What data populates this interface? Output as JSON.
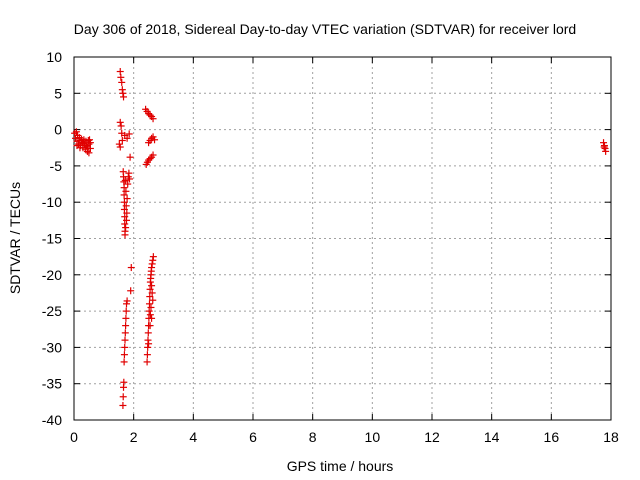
{
  "chart_data": {
    "type": "scatter",
    "title": "Day 306 of 2018, Sidereal Day-to-day VTEC variation (SDTVAR) for receiver lord",
    "xlabel": "GPS time / hours",
    "ylabel": "SDTVAR / TECUs",
    "xlim": [
      0,
      18
    ],
    "ylim": [
      -40,
      10
    ],
    "xticks": [
      0,
      2,
      4,
      6,
      8,
      10,
      12,
      14,
      16,
      18
    ],
    "yticks": [
      10,
      5,
      0,
      -5,
      -10,
      -15,
      -20,
      -25,
      -30,
      -35,
      -40
    ],
    "grid": true,
    "marker": "+",
    "color": "#e00000",
    "series": [
      {
        "name": "SDTVAR",
        "points": [
          [
            0.02,
            -0.5
          ],
          [
            0.05,
            -1.2
          ],
          [
            0.08,
            -0.3
          ],
          [
            0.1,
            -1.6
          ],
          [
            0.12,
            -0.8
          ],
          [
            0.15,
            -2.0
          ],
          [
            0.18,
            -1.1
          ],
          [
            0.2,
            -1.5
          ],
          [
            0.22,
            -2.2
          ],
          [
            0.25,
            -1.3
          ],
          [
            0.28,
            -1.8
          ],
          [
            0.3,
            -2.5
          ],
          [
            0.33,
            -1.4
          ],
          [
            0.35,
            -2.0
          ],
          [
            0.38,
            -2.7
          ],
          [
            0.4,
            -1.6
          ],
          [
            0.42,
            -2.2
          ],
          [
            0.45,
            -3.0
          ],
          [
            0.48,
            -1.5
          ],
          [
            0.5,
            -2.0
          ],
          [
            0.52,
            -1.4
          ],
          [
            0.55,
            -1.8
          ],
          [
            0.1,
            -2.2
          ],
          [
            0.2,
            -2.5
          ],
          [
            0.3,
            -1.9
          ],
          [
            0.45,
            -2.4
          ],
          [
            0.55,
            -2.6
          ],
          [
            0.5,
            -3.2
          ],
          [
            1.55,
            8.0
          ],
          [
            1.57,
            7.2
          ],
          [
            1.6,
            6.5
          ],
          [
            1.62,
            5.5
          ],
          [
            1.64,
            5.0
          ],
          [
            1.66,
            4.5
          ],
          [
            1.55,
            1.0
          ],
          [
            1.58,
            0.5
          ],
          [
            1.6,
            -0.5
          ],
          [
            1.62,
            -1.5
          ],
          [
            1.52,
            -2.0
          ],
          [
            1.55,
            -2.4
          ],
          [
            1.7,
            -0.8
          ],
          [
            1.78,
            -1.2
          ],
          [
            1.85,
            -0.6
          ],
          [
            1.88,
            -3.8
          ],
          [
            1.92,
            -19.0
          ],
          [
            1.9,
            -22.2
          ],
          [
            1.65,
            -5.8
          ],
          [
            1.66,
            -6.5
          ],
          [
            1.67,
            -7.2
          ],
          [
            1.68,
            -8.0
          ],
          [
            1.68,
            -9.0
          ],
          [
            1.69,
            -10.0
          ],
          [
            1.69,
            -11.0
          ],
          [
            1.7,
            -12.0
          ],
          [
            1.7,
            -13.0
          ],
          [
            1.71,
            -14.0
          ],
          [
            1.72,
            -7.0
          ],
          [
            1.74,
            -8.5
          ],
          [
            1.75,
            -10.5
          ],
          [
            1.76,
            -12.5
          ],
          [
            1.77,
            -11.5
          ],
          [
            1.78,
            -9.5
          ],
          [
            1.8,
            -7.5
          ],
          [
            1.82,
            -6.5
          ],
          [
            1.84,
            -6.0
          ],
          [
            1.86,
            -6.8
          ],
          [
            1.73,
            -13.5
          ],
          [
            1.71,
            -14.5
          ],
          [
            1.64,
            -38.0
          ],
          [
            1.65,
            -36.8
          ],
          [
            1.66,
            -35.5
          ],
          [
            1.67,
            -34.8
          ],
          [
            1.68,
            -32.0
          ],
          [
            1.69,
            -31.0
          ],
          [
            1.7,
            -30.0
          ],
          [
            1.71,
            -29.0
          ],
          [
            1.72,
            -28.0
          ],
          [
            1.73,
            -27.0
          ],
          [
            1.74,
            -26.0
          ],
          [
            1.75,
            -25.0
          ],
          [
            1.76,
            -24.0
          ],
          [
            1.78,
            -23.6
          ],
          [
            2.4,
            2.8
          ],
          [
            2.45,
            2.5
          ],
          [
            2.5,
            2.2
          ],
          [
            2.55,
            2.0
          ],
          [
            2.6,
            1.8
          ],
          [
            2.65,
            1.5
          ],
          [
            2.5,
            -1.8
          ],
          [
            2.55,
            -1.5
          ],
          [
            2.6,
            -1.2
          ],
          [
            2.65,
            -1.0
          ],
          [
            2.7,
            -1.4
          ],
          [
            2.42,
            -4.8
          ],
          [
            2.46,
            -4.5
          ],
          [
            2.5,
            -4.2
          ],
          [
            2.55,
            -4.0
          ],
          [
            2.6,
            -3.8
          ],
          [
            2.65,
            -3.5
          ],
          [
            2.45,
            -32.0
          ],
          [
            2.46,
            -31.0
          ],
          [
            2.47,
            -30.0
          ],
          [
            2.48,
            -29.0
          ],
          [
            2.49,
            -28.0
          ],
          [
            2.5,
            -27.0
          ],
          [
            2.51,
            -26.0
          ],
          [
            2.52,
            -25.0
          ],
          [
            2.53,
            -24.0
          ],
          [
            2.54,
            -23.0
          ],
          [
            2.55,
            -22.0
          ],
          [
            2.56,
            -21.0
          ],
          [
            2.57,
            -20.5
          ],
          [
            2.58,
            -20.0
          ],
          [
            2.59,
            -19.5
          ],
          [
            2.6,
            -19.0
          ],
          [
            2.62,
            -18.5
          ],
          [
            2.64,
            -18.0
          ],
          [
            2.66,
            -17.5
          ],
          [
            2.6,
            -21.5
          ],
          [
            2.62,
            -22.5
          ],
          [
            2.64,
            -23.5
          ],
          [
            2.58,
            -24.5
          ],
          [
            2.56,
            -25.5
          ],
          [
            2.6,
            -26.0
          ],
          [
            2.55,
            -27.0
          ],
          [
            2.5,
            -29.5
          ],
          [
            17.75,
            -1.8
          ],
          [
            17.78,
            -2.2
          ],
          [
            17.8,
            -2.6
          ],
          [
            17.82,
            -3.0
          ],
          [
            17.77,
            -2.4
          ]
        ]
      }
    ]
  }
}
